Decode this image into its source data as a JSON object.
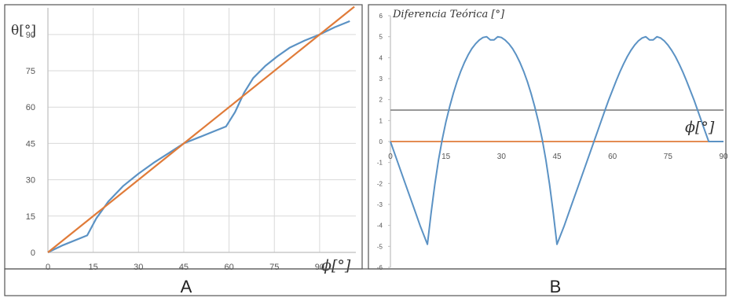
{
  "colors": {
    "blue_curve": "#5b92c4",
    "orange_line": "#e07b39",
    "threshold_line": "#8a8a8a",
    "grid": "#d9d9d9",
    "axis": "#bfbfbf",
    "frame": "#555555"
  },
  "chart_data": [
    {
      "type": "line",
      "panel_label": "A",
      "ylabel": "θ[°]",
      "xlabel": "ϕ[°]",
      "x_ticks": [
        "0",
        "15",
        "30",
        "45",
        "60",
        "75",
        "90"
      ],
      "y_ticks": [
        "0",
        "15",
        "30",
        "45",
        "60",
        "75",
        "90"
      ],
      "xlim": [
        0,
        102
      ],
      "ylim": [
        0,
        101
      ],
      "grid": true,
      "series": [
        {
          "color": "#5b92c4",
          "x": [
            0,
            5,
            13,
            16,
            20,
            25,
            30,
            35,
            40,
            45,
            50,
            55,
            59,
            62,
            65,
            68,
            72,
            76,
            80,
            85,
            90,
            95,
            100
          ],
          "y": [
            0,
            3,
            7,
            14,
            21,
            27.5,
            32.5,
            37,
            41,
            45,
            47.5,
            50,
            52,
            58,
            66,
            72,
            77,
            81,
            84.5,
            87.5,
            90,
            93,
            95.5
          ]
        },
        {
          "color": "#e07b39",
          "x": [
            0,
            101.5
          ],
          "y": [
            0,
            101.5
          ]
        }
      ]
    },
    {
      "type": "line",
      "panel_label": "B",
      "title": "Diferencia Teórica [°]",
      "xlabel": "ϕ[°]",
      "x_ticks": [
        "0",
        "15",
        "30",
        "45",
        "60",
        "75",
        "90"
      ],
      "y_ticks": [
        "6",
        "5",
        "4",
        "3",
        "2",
        "1",
        "0",
        "-1",
        "-2",
        "-3",
        "-4",
        "-5",
        "-6"
      ],
      "xlim": [
        0,
        90
      ],
      "ylim": [
        -6,
        6
      ],
      "grid": false,
      "series": [
        {
          "color": "#5b92c4",
          "x": [
            0,
            2,
            4,
            6,
            8,
            10,
            11,
            12,
            13,
            14,
            15,
            16,
            17,
            18,
            19,
            20,
            21,
            22,
            23,
            24,
            25,
            26,
            27,
            28,
            29,
            30,
            31,
            32,
            33,
            34,
            35,
            36,
            37,
            38,
            39,
            40,
            41,
            42,
            43,
            44,
            45,
            47,
            49,
            51,
            53,
            55,
            56,
            57,
            58,
            59,
            60,
            61,
            62,
            63,
            64,
            65,
            66,
            67,
            68,
            69,
            70,
            71,
            72,
            73,
            74,
            75,
            76,
            77,
            78,
            79,
            80,
            81,
            82,
            83,
            84,
            85,
            86,
            87,
            88,
            89,
            90
          ],
          "y": [
            0,
            -1,
            -2,
            -3,
            -4,
            -4.9,
            -3.4,
            -2.05,
            -0.88,
            0.11,
            0.95,
            1.66,
            2.3,
            2.86,
            3.35,
            3.77,
            4.13,
            4.43,
            4.66,
            4.84,
            4.96,
            5.0,
            4.85,
            4.85,
            5.0,
            4.96,
            4.84,
            4.66,
            4.43,
            4.13,
            3.77,
            3.35,
            2.86,
            2.3,
            1.66,
            0.95,
            0.11,
            -0.88,
            -2.05,
            -3.4,
            -4.9,
            -4,
            -3,
            -2,
            -1,
            0,
            0.5,
            1,
            1.5,
            2,
            2.45,
            2.9,
            3.32,
            3.7,
            4.05,
            4.35,
            4.6,
            4.8,
            4.94,
            5.0,
            4.85,
            4.85,
            5.0,
            4.94,
            4.8,
            4.6,
            4.35,
            4.05,
            3.7,
            3.32,
            2.9,
            2.45,
            2.0,
            1.5,
            1.0,
            0.5,
            0,
            0,
            0,
            0,
            0
          ]
        },
        {
          "color": "#e07b39",
          "x": [
            0,
            90
          ],
          "y": [
            0,
            0
          ]
        },
        {
          "color": "#8a8a8a",
          "x": [
            0,
            90
          ],
          "y": [
            1.5,
            1.5
          ]
        }
      ]
    }
  ]
}
